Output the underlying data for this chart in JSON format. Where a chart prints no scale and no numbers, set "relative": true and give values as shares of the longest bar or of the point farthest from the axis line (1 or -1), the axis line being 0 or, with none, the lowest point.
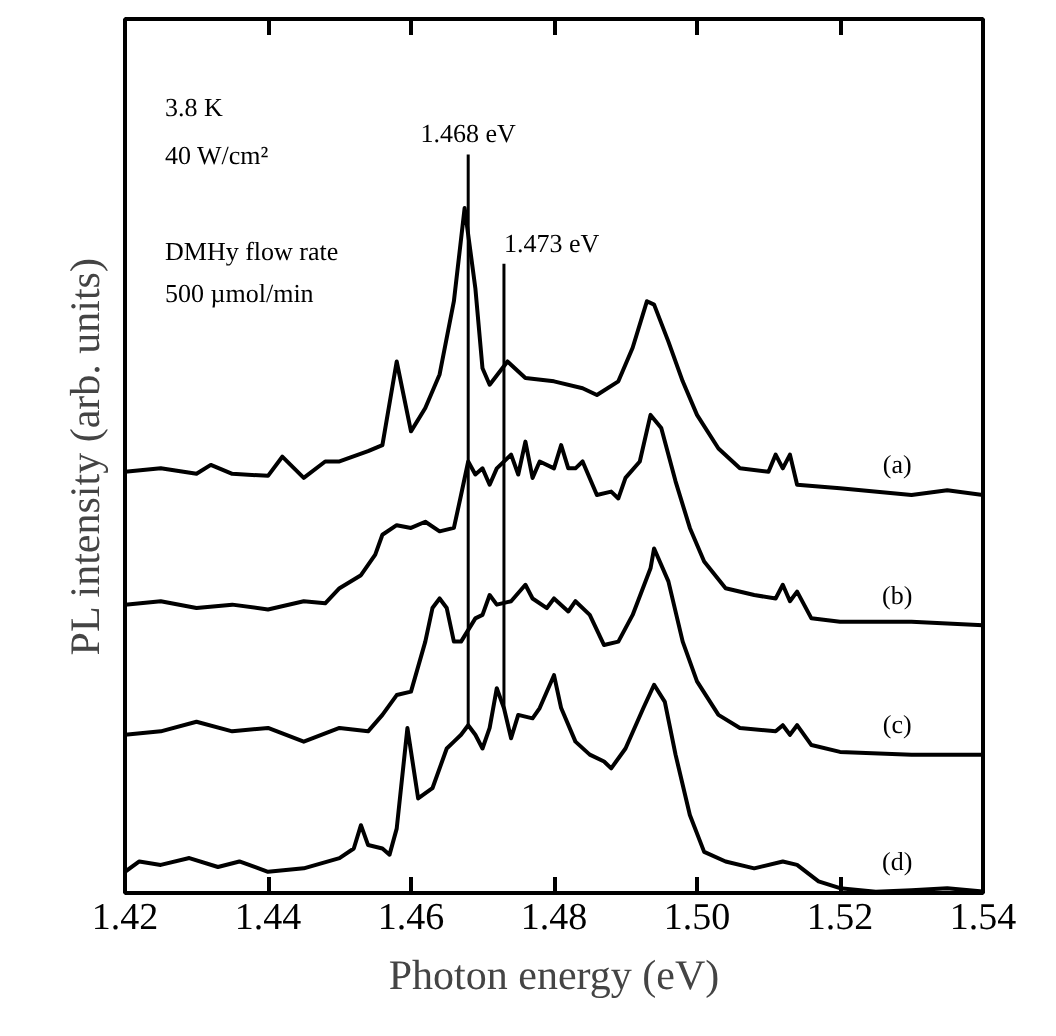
{
  "chart_data": {
    "type": "line",
    "relative": true,
    "xlabel": "Photon energy (eV)",
    "ylabel": "PL intensity (arb. units)",
    "xlim": [
      1.42,
      1.54
    ],
    "xticks": [
      1.42,
      1.44,
      1.46,
      1.48,
      {
        "value": 1.5,
        "label": "1.50"
      },
      1.52,
      1.54
    ],
    "tick_labels": "x",
    "grid": false,
    "marker": "none",
    "line_style": "solid",
    "annotations": [
      "3.8 K",
      "40 W/cm²",
      "DMHy flow rate",
      "500 µmol/min"
    ],
    "ref_lines": [
      {
        "axis": "x",
        "value": 1.468,
        "label": "1.468 eV",
        "color": "#000000"
      },
      {
        "axis": "x",
        "value": 1.473,
        "label": "1.473 eV",
        "color": "#000000"
      }
    ],
    "series": [
      {
        "name": "(a)",
        "color": "#000000",
        "x": [
          1.42,
          1.425,
          1.43,
          1.432,
          1.435,
          1.44,
          1.442,
          1.445,
          1.448,
          1.45,
          1.454,
          1.456,
          1.458,
          1.46,
          1.462,
          1.464,
          1.466,
          1.4675,
          1.469,
          1.47,
          1.471,
          1.4735,
          1.476,
          1.48,
          1.484,
          1.486,
          1.489,
          1.491,
          1.493,
          1.494,
          1.496,
          1.498,
          1.5,
          1.503,
          1.506,
          1.51,
          1.511,
          1.512,
          1.513,
          1.514,
          1.52,
          1.53,
          1.535,
          1.54
        ],
        "values": [
          0.615,
          0.62,
          0.612,
          0.625,
          0.612,
          0.609,
          0.637,
          0.606,
          0.63,
          0.63,
          0.645,
          0.654,
          0.776,
          0.674,
          0.708,
          0.757,
          0.864,
          1.0,
          0.883,
          0.766,
          0.742,
          0.776,
          0.752,
          0.747,
          0.737,
          0.727,
          0.747,
          0.796,
          0.864,
          0.859,
          0.805,
          0.747,
          0.698,
          0.649,
          0.62,
          0.615,
          0.64,
          0.62,
          0.64,
          0.596,
          0.591,
          0.581,
          0.588,
          0.581
        ]
      },
      {
        "name": "(b)",
        "color": "#000000",
        "x": [
          1.42,
          1.425,
          1.43,
          1.435,
          1.44,
          1.445,
          1.448,
          1.45,
          1.453,
          1.455,
          1.456,
          1.458,
          1.46,
          1.462,
          1.464,
          1.466,
          1.467,
          1.468,
          1.469,
          1.47,
          1.471,
          1.472,
          1.474,
          1.475,
          1.476,
          1.477,
          1.478,
          1.48,
          1.481,
          1.482,
          1.483,
          1.484,
          1.486,
          1.488,
          1.489,
          1.49,
          1.492,
          1.4935,
          1.495,
          1.497,
          1.499,
          1.501,
          1.504,
          1.508,
          1.511,
          1.512,
          1.513,
          1.514,
          1.516,
          1.52,
          1.53,
          1.54
        ],
        "values": [
          0.421,
          0.426,
          0.416,
          0.421,
          0.414,
          0.426,
          0.423,
          0.445,
          0.464,
          0.494,
          0.523,
          0.537,
          0.533,
          0.542,
          0.528,
          0.533,
          0.581,
          0.63,
          0.611,
          0.62,
          0.596,
          0.62,
          0.64,
          0.611,
          0.659,
          0.606,
          0.63,
          0.62,
          0.654,
          0.62,
          0.62,
          0.63,
          0.581,
          0.586,
          0.576,
          0.606,
          0.63,
          0.698,
          0.679,
          0.601,
          0.533,
          0.484,
          0.445,
          0.435,
          0.43,
          0.45,
          0.426,
          0.44,
          0.401,
          0.396,
          0.396,
          0.391
        ]
      },
      {
        "name": "(c)",
        "color": "#000000",
        "x": [
          1.42,
          1.425,
          1.43,
          1.435,
          1.44,
          1.445,
          1.45,
          1.454,
          1.456,
          1.458,
          1.46,
          1.462,
          1.463,
          1.464,
          1.465,
          1.466,
          1.467,
          1.469,
          1.47,
          1.471,
          1.472,
          1.474,
          1.476,
          1.477,
          1.479,
          1.48,
          1.482,
          1.483,
          1.485,
          1.487,
          1.489,
          1.491,
          1.4935,
          1.494,
          1.496,
          1.498,
          1.5,
          1.503,
          1.506,
          1.511,
          1.512,
          1.513,
          1.514,
          1.516,
          1.52,
          1.53,
          1.54
        ],
        "values": [
          0.231,
          0.236,
          0.25,
          0.236,
          0.241,
          0.221,
          0.241,
          0.236,
          0.26,
          0.289,
          0.294,
          0.367,
          0.416,
          0.43,
          0.416,
          0.367,
          0.367,
          0.401,
          0.406,
          0.435,
          0.421,
          0.426,
          0.45,
          0.43,
          0.416,
          0.43,
          0.411,
          0.426,
          0.406,
          0.362,
          0.367,
          0.406,
          0.474,
          0.503,
          0.455,
          0.367,
          0.309,
          0.26,
          0.241,
          0.236,
          0.245,
          0.231,
          0.245,
          0.216,
          0.206,
          0.202,
          0.202
        ]
      },
      {
        "name": "(d)",
        "color": "#000000",
        "x": [
          1.42,
          1.422,
          1.425,
          1.429,
          1.433,
          1.436,
          1.44,
          1.445,
          1.45,
          1.452,
          1.453,
          1.454,
          1.456,
          1.457,
          1.458,
          1.459,
          1.4595,
          1.461,
          1.463,
          1.465,
          1.466,
          1.467,
          1.468,
          1.469,
          1.47,
          1.471,
          1.472,
          1.473,
          1.474,
          1.475,
          1.477,
          1.478,
          1.48,
          1.481,
          1.483,
          1.485,
          1.487,
          1.488,
          1.49,
          1.4925,
          1.494,
          1.4955,
          1.497,
          1.499,
          1.501,
          1.504,
          1.508,
          1.512,
          1.514,
          1.517,
          1.52,
          1.525,
          1.53,
          1.535,
          1.54
        ],
        "values": [
          0.031,
          0.046,
          0.041,
          0.051,
          0.038,
          0.046,
          0.031,
          0.036,
          0.051,
          0.065,
          0.099,
          0.07,
          0.065,
          0.056,
          0.094,
          0.192,
          0.241,
          0.138,
          0.153,
          0.211,
          0.221,
          0.231,
          0.245,
          0.231,
          0.211,
          0.241,
          0.299,
          0.27,
          0.226,
          0.26,
          0.255,
          0.27,
          0.318,
          0.27,
          0.221,
          0.202,
          0.192,
          0.182,
          0.211,
          0.27,
          0.304,
          0.279,
          0.202,
          0.114,
          0.06,
          0.046,
          0.036,
          0.046,
          0.041,
          0.017,
          0.007,
          0.002,
          0.004,
          0.007,
          0.002
        ]
      }
    ]
  }
}
